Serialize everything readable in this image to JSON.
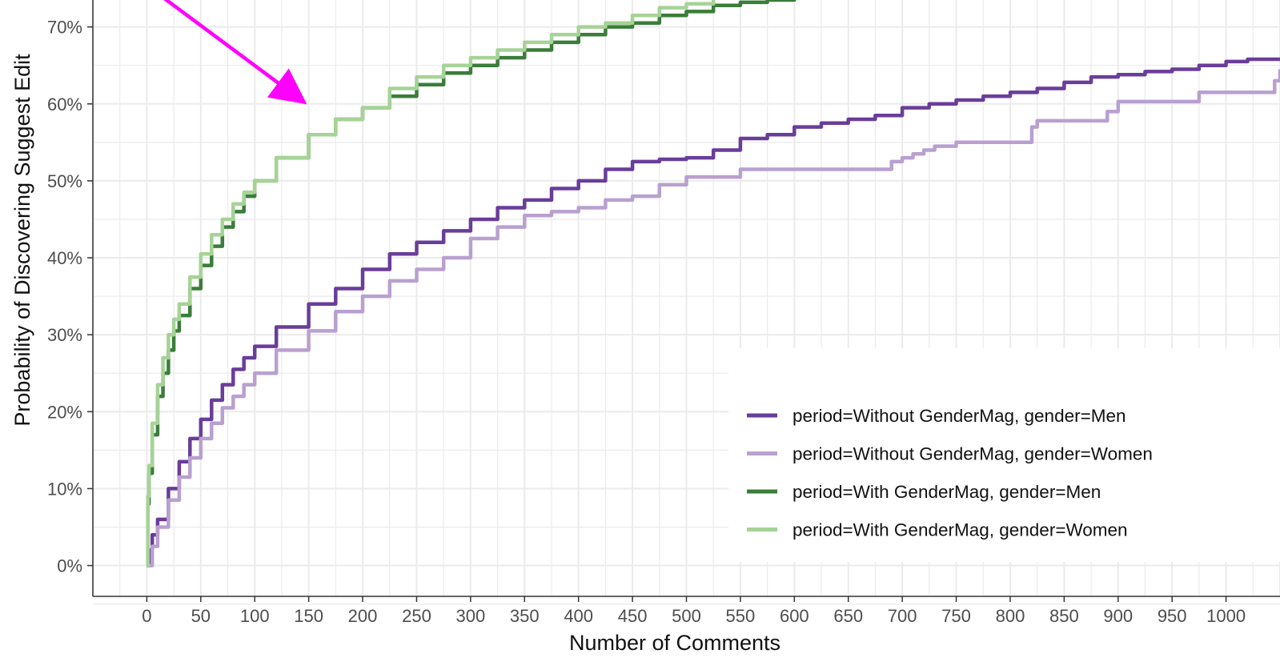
{
  "chart_data": {
    "type": "line",
    "title": "",
    "xlabel": "Number of Comments",
    "ylabel": "Probability of Discovering Suggest Edit",
    "xlim": [
      -50,
      1050
    ],
    "ylim": [
      -4,
      73.5
    ],
    "x_ticks": [
      0,
      50,
      100,
      150,
      200,
      250,
      300,
      350,
      400,
      450,
      500,
      550,
      600,
      650,
      700,
      750,
      800,
      850,
      900,
      950,
      1000
    ],
    "x_tick_labels": [
      "0",
      "50",
      "100",
      "150",
      "200",
      "250",
      "300",
      "350",
      "400",
      "450",
      "500",
      "550",
      "600",
      "650",
      "700",
      "750",
      "800",
      "850",
      "900",
      "950",
      "1000"
    ],
    "y_ticks": [
      0,
      10,
      20,
      30,
      40,
      50,
      60,
      70
    ],
    "y_tick_labels": [
      "0%",
      "10%",
      "20%",
      "30%",
      "40%",
      "50%",
      "60%",
      "70%"
    ],
    "grid": true,
    "legend_position": "bottom-right",
    "series": [
      {
        "name": "period=Without GenderMag, gender=Men",
        "color": "#6a3d9a",
        "x": [
          0,
          2,
          5,
          10,
          20,
          30,
          40,
          50,
          60,
          70,
          80,
          90,
          100,
          120,
          150,
          175,
          200,
          225,
          250,
          275,
          300,
          325,
          350,
          375,
          400,
          425,
          450,
          475,
          500,
          525,
          550,
          575,
          600,
          625,
          650,
          675,
          700,
          725,
          750,
          775,
          800,
          825,
          850,
          875,
          900,
          925,
          950,
          975,
          1000,
          1020,
          1050
        ],
        "y": [
          0,
          2,
          4,
          6,
          10,
          13.5,
          16.5,
          19,
          21.5,
          23.5,
          25.5,
          27,
          28.5,
          31,
          34,
          36,
          38.5,
          40.5,
          42,
          43.5,
          45,
          46.5,
          47.5,
          49,
          50,
          51.5,
          52.5,
          52.8,
          53,
          54,
          55.5,
          56,
          57,
          57.5,
          58,
          58.5,
          59.5,
          60,
          60.5,
          61,
          61.5,
          62,
          62.8,
          63.5,
          63.8,
          64.2,
          64.5,
          65,
          65.5,
          65.8,
          66
        ]
      },
      {
        "name": "period=Without GenderMag, gender=Women",
        "color": "#b9a0d0",
        "x": [
          0,
          5,
          10,
          20,
          30,
          40,
          50,
          60,
          70,
          80,
          90,
          100,
          120,
          150,
          175,
          200,
          225,
          250,
          275,
          300,
          325,
          350,
          375,
          400,
          425,
          450,
          475,
          500,
          550,
          600,
          650,
          675,
          690,
          700,
          710,
          720,
          730,
          750,
          800,
          815,
          820,
          825,
          850,
          880,
          890,
          895,
          900,
          950,
          970,
          975,
          1000,
          1040,
          1045,
          1050
        ],
        "y": [
          0,
          2.5,
          5,
          8.5,
          11.5,
          14,
          16.5,
          18.5,
          20.5,
          22,
          23.5,
          25,
          28,
          30.5,
          33,
          35,
          37,
          38.5,
          40,
          42.5,
          44,
          45.5,
          46,
          46.5,
          47.5,
          48,
          49.5,
          50.5,
          51.5,
          51.5,
          51.5,
          51.5,
          52.5,
          53,
          53.5,
          54,
          54.5,
          55,
          55,
          55,
          57,
          57.8,
          57.8,
          57.8,
          59,
          59,
          60.3,
          60.3,
          60.3,
          61.5,
          61.5,
          61.5,
          63,
          64.5
        ]
      },
      {
        "name": "period=With GenderMag, gender=Men",
        "color": "#3a7d3a",
        "x": [
          0,
          1,
          2,
          5,
          10,
          15,
          20,
          25,
          30,
          40,
          50,
          60,
          70,
          80,
          90,
          100,
          120,
          150,
          175,
          200,
          225,
          250,
          275,
          300,
          325,
          350,
          375,
          400,
          425,
          450,
          475,
          500,
          525,
          550,
          575,
          600,
          625
        ],
        "y": [
          0,
          8,
          12,
          17,
          22,
          25,
          28,
          30.5,
          32.5,
          36,
          39,
          41.5,
          44,
          46,
          48,
          50,
          53,
          56,
          58,
          59.5,
          61,
          62.5,
          64,
          65,
          66,
          67,
          68,
          69,
          70,
          70.5,
          71.5,
          72,
          72.8,
          73.2,
          73.5,
          74,
          74.5
        ]
      },
      {
        "name": "period=With GenderMag, gender=Women",
        "color": "#a6d396",
        "x": [
          0,
          1,
          2,
          5,
          10,
          15,
          20,
          25,
          30,
          40,
          50,
          60,
          70,
          80,
          90,
          100,
          120,
          150,
          175,
          200,
          225,
          250,
          275,
          300,
          325,
          350,
          375,
          400,
          425,
          450,
          475,
          500,
          525
        ],
        "y": [
          0,
          9,
          13,
          18.5,
          23.5,
          27,
          30,
          32,
          34,
          37.5,
          40.5,
          43,
          45,
          47,
          48.5,
          50,
          53,
          56,
          58,
          59.5,
          62,
          63.5,
          65,
          66,
          67,
          68,
          69,
          70,
          70.5,
          71.5,
          72.5,
          73,
          74
        ]
      }
    ],
    "annotation": {
      "type": "arrow",
      "color": "#ff00ff",
      "from": [
        -25,
        78
      ],
      "to": [
        143,
        60.5
      ]
    }
  }
}
